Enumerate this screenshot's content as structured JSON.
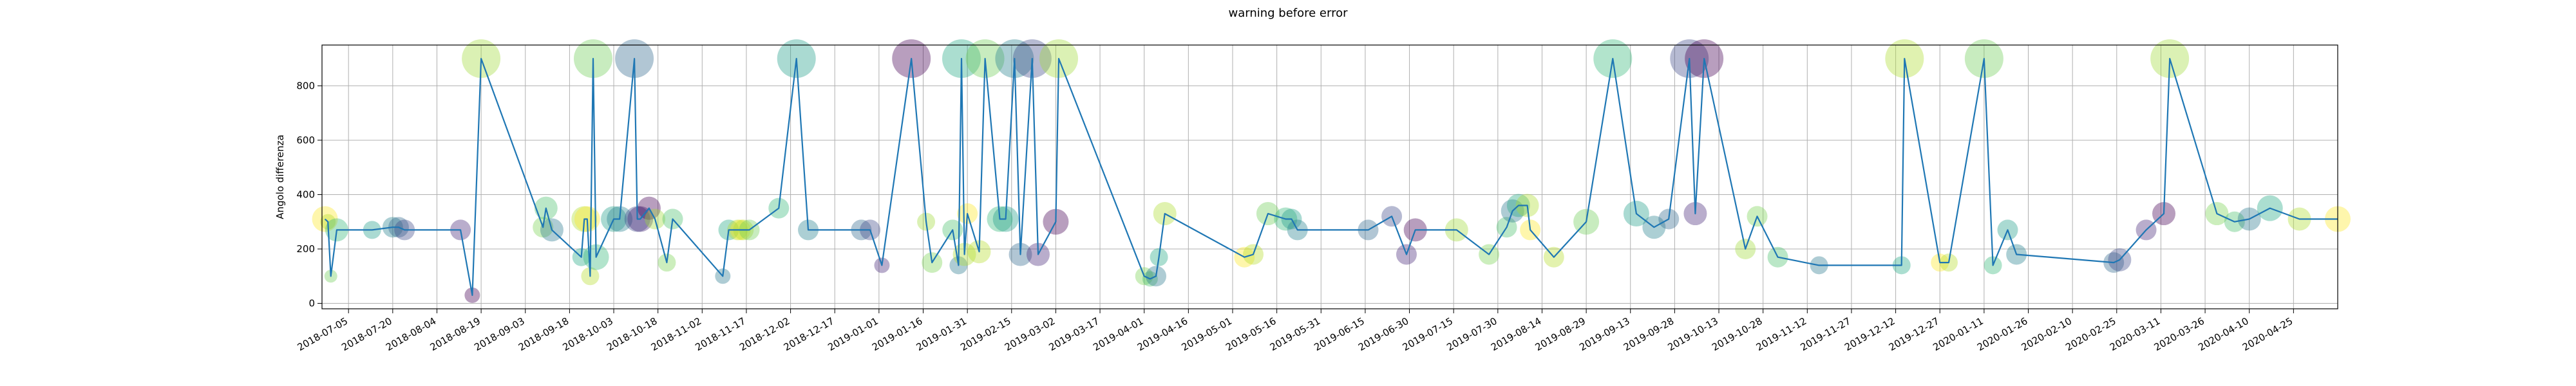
{
  "chart_data": {
    "type": "line",
    "title": "warning before error",
    "xlabel": "",
    "ylabel": "Angolo differenza",
    "xlim": [
      "2018-06-26",
      "2020-05-10"
    ],
    "ylim": [
      -20,
      950
    ],
    "grid": true,
    "x_tick_labels": [
      "2018-07-05",
      "2018-07-20",
      "2018-08-04",
      "2018-08-19",
      "2018-09-03",
      "2018-09-18",
      "2018-10-03",
      "2018-10-18",
      "2018-11-02",
      "2018-11-17",
      "2018-12-02",
      "2018-12-17",
      "2019-01-01",
      "2019-01-16",
      "2019-01-31",
      "2019-02-15",
      "2019-03-02",
      "2019-03-17",
      "2019-04-01",
      "2019-04-16",
      "2019-05-01",
      "2019-05-16",
      "2019-05-31",
      "2019-06-15",
      "2019-06-30",
      "2019-07-15",
      "2019-07-30",
      "2019-08-14",
      "2019-08-29",
      "2019-09-13",
      "2019-09-28",
      "2019-10-13",
      "2019-10-28",
      "2019-11-12",
      "2019-11-27",
      "2019-12-12",
      "2019-12-27",
      "2020-01-11",
      "2020-01-26",
      "2020-02-10",
      "2020-02-25",
      "2020-03-11",
      "2020-03-26",
      "2020-04-10",
      "2020-04-25"
    ],
    "y_tick_labels": [
      "0",
      "200",
      "400",
      "600",
      "800"
    ],
    "y_ticks": [
      0,
      200,
      400,
      600,
      800
    ],
    "line_color": "#1f77b4",
    "series": [
      {
        "x": [
          "2018-06-27",
          "2018-06-28",
          "2018-06-29",
          "2018-07-01",
          "2018-07-13",
          "2018-07-20",
          "2018-07-22",
          "2018-07-24",
          "2018-08-12",
          "2018-08-16",
          "2018-08-19",
          "2018-09-09",
          "2018-09-10",
          "2018-09-12",
          "2018-09-22",
          "2018-09-23",
          "2018-09-24",
          "2018-09-25",
          "2018-09-26",
          "2018-09-27",
          "2018-10-03",
          "2018-10-05",
          "2018-10-10",
          "2018-10-11",
          "2018-10-12",
          "2018-10-15",
          "2018-10-17",
          "2018-10-21",
          "2018-10-23",
          "2018-11-09",
          "2018-11-11",
          "2018-11-14",
          "2018-11-15",
          "2018-11-16",
          "2018-11-18",
          "2018-11-28",
          "2018-12-04",
          "2018-12-08",
          "2018-12-26",
          "2018-12-29",
          "2019-01-02",
          "2019-01-12",
          "2019-01-17",
          "2019-01-19",
          "2019-01-26",
          "2019-01-28",
          "2019-01-29",
          "2019-01-30",
          "2019-01-31",
          "2019-02-04",
          "2019-02-06",
          "2019-02-11",
          "2019-02-13",
          "2019-02-16",
          "2019-02-18",
          "2019-02-22",
          "2019-02-24",
          "2019-03-02",
          "2019-03-03",
          "2019-04-01",
          "2019-04-03",
          "2019-04-05",
          "2019-04-06",
          "2019-04-08",
          "2019-05-05",
          "2019-05-08",
          "2019-05-13",
          "2019-05-19",
          "2019-05-21",
          "2019-05-23",
          "2019-06-16",
          "2019-06-24",
          "2019-06-29",
          "2019-07-02",
          "2019-07-16",
          "2019-07-27",
          "2019-08-02",
          "2019-08-04",
          "2019-08-06",
          "2019-08-09",
          "2019-08-10",
          "2019-08-18",
          "2019-08-29",
          "2019-09-07",
          "2019-09-15",
          "2019-09-21",
          "2019-09-26",
          "2019-10-03",
          "2019-10-05",
          "2019-10-08",
          "2019-10-22",
          "2019-10-26",
          "2019-11-02",
          "2019-11-16",
          "2019-12-14",
          "2019-12-15",
          "2019-12-27",
          "2019-12-30",
          "2020-01-11",
          "2020-01-14",
          "2020-01-19",
          "2020-01-22",
          "2020-02-24",
          "2020-02-26",
          "2020-03-06",
          "2020-03-12",
          "2020-03-14",
          "2020-03-30",
          "2020-04-05",
          "2020-04-10",
          "2020-04-17",
          "2020-04-27",
          "2020-05-10"
        ],
        "y": [
          310,
          300,
          100,
          270,
          270,
          280,
          280,
          270,
          270,
          30,
          900,
          280,
          350,
          270,
          170,
          310,
          310,
          100,
          900,
          170,
          310,
          310,
          900,
          310,
          310,
          350,
          310,
          150,
          310,
          100,
          270,
          270,
          270,
          270,
          270,
          350,
          900,
          270,
          270,
          270,
          140,
          900,
          300,
          150,
          270,
          140,
          900,
          180,
          330,
          190,
          900,
          310,
          310,
          900,
          180,
          900,
          180,
          300,
          900,
          100,
          90,
          100,
          170,
          330,
          170,
          180,
          330,
          310,
          310,
          270,
          270,
          320,
          180,
          270,
          270,
          180,
          280,
          340,
          360,
          360,
          270,
          170,
          300,
          900,
          330,
          280,
          310,
          900,
          330,
          900,
          200,
          320,
          170,
          140,
          140,
          900,
          150,
          150,
          900,
          140,
          270,
          180,
          150,
          160,
          270,
          330,
          900,
          330,
          300,
          310,
          350,
          310,
          310
        ],
        "sizes": [
          20,
          12,
          10,
          18,
          14,
          16,
          16,
          16,
          16,
          12,
          30,
          16,
          18,
          18,
          14,
          20,
          20,
          14,
          30,
          20,
          20,
          20,
          30,
          20,
          20,
          18,
          16,
          14,
          16,
          12,
          16,
          16,
          16,
          16,
          16,
          16,
          30,
          16,
          16,
          16,
          12,
          30,
          14,
          16,
          16,
          14,
          30,
          18,
          16,
          18,
          30,
          20,
          20,
          30,
          18,
          30,
          18,
          20,
          30,
          14,
          12,
          16,
          14,
          18,
          16,
          16,
          18,
          18,
          16,
          16,
          16,
          16,
          16,
          18,
          18,
          16,
          16,
          18,
          18,
          18,
          16,
          16,
          20,
          30,
          20,
          18,
          16,
          30,
          18,
          30,
          16,
          16,
          16,
          14,
          14,
          30,
          14,
          14,
          30,
          14,
          16,
          16,
          16,
          18,
          16,
          18,
          30,
          18,
          16,
          18,
          20,
          18,
          20
        ]
      }
    ],
    "marker_colors": [
      "#fde725",
      "#b5de2b",
      "#6ece58",
      "#35b779",
      "#1f9e89",
      "#26828e",
      "#31688e",
      "#3e4989",
      "#482878",
      "#440154",
      "#a0da39",
      "#7ad151",
      "#4ac16d",
      "#2a788e",
      "#22a884",
      "#addc30"
    ]
  }
}
